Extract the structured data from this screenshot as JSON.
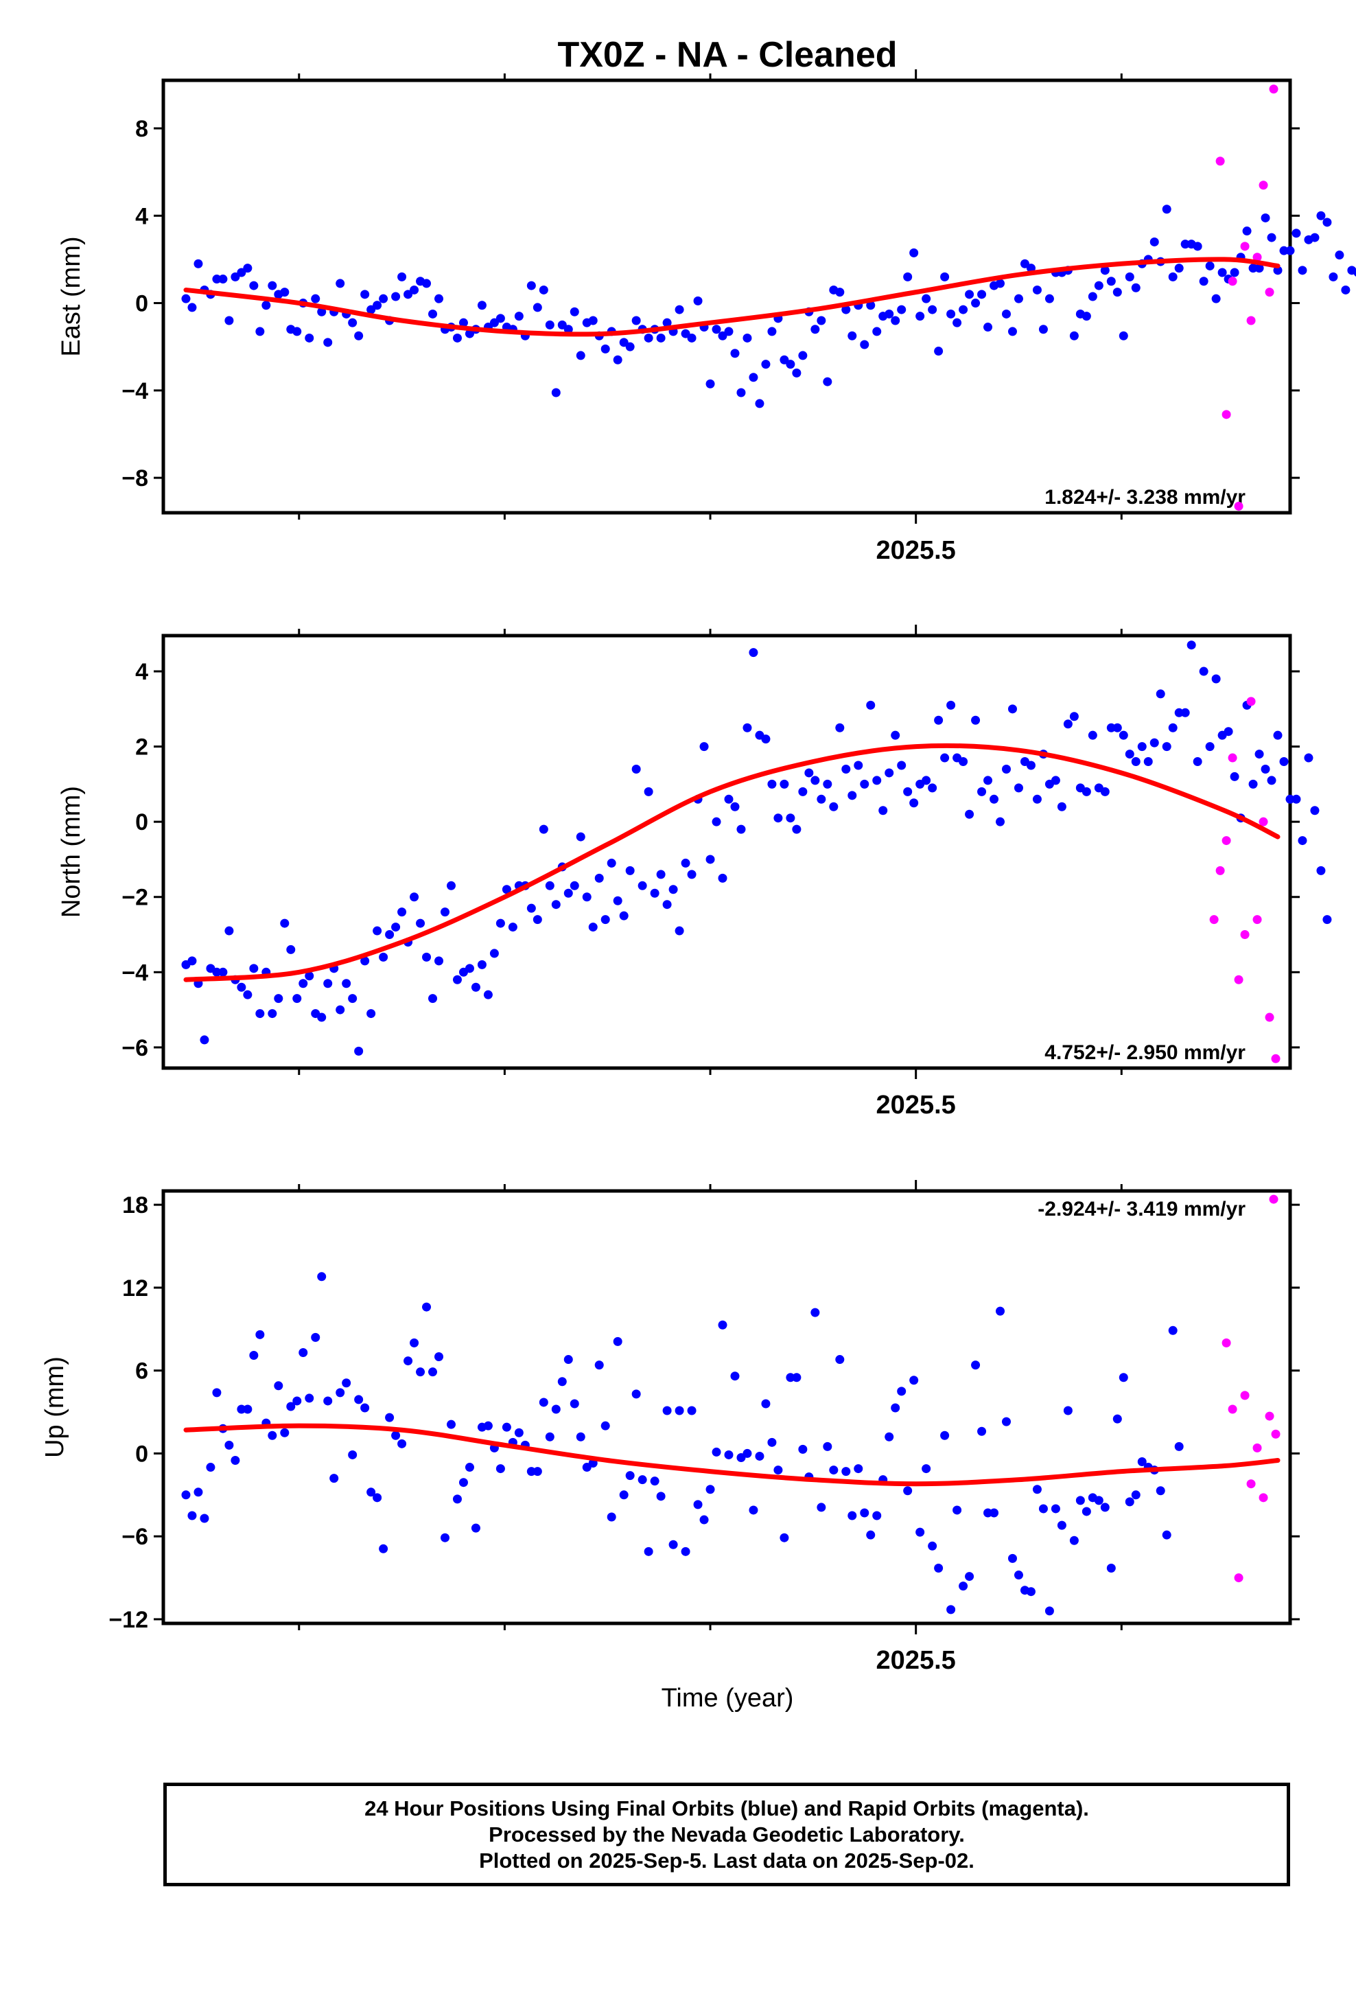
{
  "page": {
    "title": "TX0Z  - NA - Cleaned",
    "xaxis_title": "Time (year)",
    "footnote": [
      "24 Hour Positions Using Final Orbits (blue) and Rapid Orbits (magenta).",
      "Processed by the Nevada Geodetic Laboratory.",
      "Plotted on 2025-Sep-5. Last data on 2025-Sep-02."
    ]
  },
  "colors": {
    "final": "#0000ff",
    "rapid": "#ff00ff",
    "fit": "#ff0000",
    "frame": "#000000"
  },
  "chart_data": [
    {
      "type": "scatter",
      "ylabel": "East (mm)",
      "rate_label": "1.824+/- 3.238 mm/yr",
      "xlim": [
        2025.134,
        2025.682
      ],
      "ylim": [
        -9.6,
        10.2
      ],
      "x_ticks": [
        {
          "value": 2025.5,
          "label": "2025.5"
        }
      ],
      "x_minor_ticks": [
        2025.2,
        2025.3,
        2025.4,
        2025.6
      ],
      "y_ticks": [
        8,
        4,
        0,
        -4,
        -8
      ],
      "y_tick_labels": [
        "8",
        "4",
        "0",
        "−4",
        "−8"
      ],
      "final": {
        "start": 2025.145,
        "step": 0.003,
        "y": [
          0.2,
          -0.2,
          1.8,
          0.6,
          0.4,
          1.1,
          1.1,
          -0.8,
          1.2,
          1.4,
          1.6,
          0.8,
          -1.3,
          -0.1,
          0.8,
          0.4,
          0.5,
          -1.2,
          -1.3,
          0.0,
          -1.6,
          0.2,
          -0.4,
          -1.8,
          -0.4,
          0.9,
          -0.5,
          -0.9,
          -1.5,
          0.4,
          -0.3,
          -0.1,
          0.2,
          -0.8,
          0.3,
          1.2,
          0.4,
          0.6,
          1.0,
          0.9,
          -0.5,
          0.2,
          -1.2,
          -1.1,
          -1.6,
          -0.9,
          -1.4,
          -1.2,
          -0.1,
          -1.1,
          -0.9,
          -0.7,
          -1.1,
          -1.2,
          -0.6,
          -1.5,
          0.8,
          -0.2,
          0.6,
          -1.0,
          -4.1,
          -1.0,
          -1.2,
          -0.4,
          -2.4,
          -0.9,
          -0.8,
          -1.5,
          -2.1,
          -1.3,
          -2.6,
          -1.8,
          -2.0,
          -0.8,
          -1.2,
          -1.6,
          -1.2,
          -1.6,
          -0.9,
          -1.3,
          -0.3,
          -1.4,
          -1.6,
          0.1,
          -1.1,
          -3.7,
          -1.2,
          -1.5,
          -1.3,
          -2.3,
          -4.1,
          -1.6,
          -3.4,
          -4.6,
          -2.8,
          -1.3,
          -0.7,
          -2.6,
          -2.8,
          -3.2,
          -2.4,
          -0.4,
          -1.2,
          -0.8,
          -3.6,
          0.6,
          0.5,
          -0.3,
          -1.5,
          -0.1,
          -1.9,
          -0.1,
          -1.3,
          -0.6,
          -0.5,
          -0.8,
          -0.3,
          1.2,
          2.3,
          -0.6,
          0.2,
          -0.3,
          -2.2,
          1.2,
          -0.5,
          -0.9,
          -0.3,
          0.4,
          0.0,
          0.4,
          -1.1,
          0.8,
          0.9,
          -0.5,
          -1.3,
          0.2,
          1.8,
          1.6,
          0.6,
          -1.2,
          0.2,
          1.4,
          1.4,
          1.5,
          -1.5,
          -0.5,
          -0.6,
          0.3,
          0.8,
          1.5,
          1.0,
          0.5,
          -1.5,
          1.2,
          0.7,
          1.8,
          2.0,
          2.8,
          1.9,
          4.3,
          1.2,
          1.6,
          2.7,
          2.7,
          2.6,
          1.0,
          1.7,
          0.2,
          1.4,
          1.1,
          1.4,
          2.1,
          3.3,
          1.6,
          1.6,
          3.9,
          3.0,
          1.5,
          2.4,
          2.4,
          3.2,
          1.5,
          2.9,
          3.0,
          4.0,
          3.7,
          1.2,
          2.2,
          0.6,
          1.5,
          1.4
        ]
      },
      "rapid": {
        "x": [
          2025.648,
          2025.651,
          2025.654,
          2025.657,
          2025.66,
          2025.663,
          2025.666,
          2025.669
        ],
        "y": [
          6.5,
          -5.1,
          1.0,
          -9.3,
          2.6,
          -0.8,
          2.1,
          5.4
        ]
      },
      "rapid_extra": {
        "x": [
          2025.672,
          2025.674
        ],
        "y": [
          0.5,
          9.8
        ]
      },
      "fit": {
        "x": [
          2025.145,
          2025.2,
          2025.25,
          2025.3,
          2025.35,
          2025.4,
          2025.45,
          2025.5,
          2025.55,
          2025.6,
          2025.65,
          2025.676
        ],
        "y": [
          0.6,
          0.0,
          -0.8,
          -1.3,
          -1.4,
          -0.9,
          -0.3,
          0.5,
          1.3,
          1.8,
          2.0,
          1.7
        ]
      }
    },
    {
      "type": "scatter",
      "ylabel": "North (mm)",
      "rate_label": "4.752+/- 2.950 mm/yr",
      "xlim": [
        2025.134,
        2025.682
      ],
      "ylim": [
        -6.55,
        4.95
      ],
      "x_ticks": [
        {
          "value": 2025.5,
          "label": "2025.5"
        }
      ],
      "x_minor_ticks": [
        2025.2,
        2025.3,
        2025.4,
        2025.6
      ],
      "y_ticks": [
        4,
        2,
        0,
        -2,
        -4,
        -6
      ],
      "y_tick_labels": [
        "4",
        "2",
        "0",
        "−2",
        "−4",
        "−6"
      ],
      "final": {
        "start": 2025.145,
        "step": 0.003,
        "y": [
          -3.8,
          -3.7,
          -4.3,
          -5.8,
          -3.9,
          -4.0,
          -4.0,
          -2.9,
          -4.2,
          -4.4,
          -4.6,
          -3.9,
          -5.1,
          -4.0,
          -5.1,
          -4.7,
          -2.7,
          -3.4,
          -4.7,
          -4.3,
          -4.1,
          -5.1,
          -5.2,
          -4.3,
          -3.9,
          -5.0,
          -4.3,
          -4.7,
          -6.1,
          -3.7,
          -5.1,
          -2.9,
          -3.6,
          -3.0,
          -2.8,
          -2.4,
          -3.2,
          -2.0,
          -2.7,
          -3.6,
          -4.7,
          -3.7,
          -2.4,
          -1.7,
          -4.2,
          -4.0,
          -3.9,
          -4.4,
          -3.8,
          -4.6,
          -3.5,
          -2.7,
          -1.8,
          -2.8,
          -1.7,
          -1.7,
          -2.3,
          -2.6,
          -0.2,
          -1.7,
          -2.2,
          -1.2,
          -1.9,
          -1.7,
          -0.4,
          -2.0,
          -2.8,
          -1.5,
          -2.6,
          -1.1,
          -2.1,
          -2.5,
          -1.3,
          1.4,
          -1.7,
          0.8,
          -1.9,
          -1.4,
          -2.2,
          -1.8,
          -2.9,
          -1.1,
          -1.4,
          0.6,
          2.0,
          -1.0,
          0.0,
          -1.5,
          0.6,
          0.4,
          -0.2,
          2.5,
          4.5,
          2.3,
          2.2,
          1.0,
          0.1,
          1.0,
          0.1,
          -0.2,
          0.8,
          1.3,
          1.1,
          0.6,
          1.0,
          0.4,
          2.5,
          1.4,
          0.7,
          1.5,
          1.0,
          3.1,
          1.1,
          0.3,
          1.3,
          2.3,
          1.5,
          0.8,
          0.5,
          1.0,
          1.1,
          0.9,
          2.7,
          1.7,
          3.1,
          1.7,
          1.6,
          0.2,
          2.7,
          0.8,
          1.1,
          0.6,
          0.0,
          1.4,
          3.0,
          0.9,
          1.6,
          1.5,
          0.6,
          1.8,
          1.0,
          1.1,
          0.4,
          2.6,
          2.8,
          0.9,
          0.8,
          2.3,
          0.9,
          0.8,
          2.5,
          2.5,
          2.3,
          1.8,
          1.6,
          2.0,
          1.6,
          2.1,
          3.4,
          2.0,
          2.5,
          2.9,
          2.9,
          4.7,
          1.6,
          4.0,
          2.0,
          3.8,
          2.3,
          2.4,
          1.2,
          0.1,
          3.1,
          1.0,
          1.8,
          1.4,
          1.1,
          2.3,
          1.6,
          0.6,
          0.6,
          -0.5,
          1.7,
          0.3,
          -1.3,
          -2.6
        ]
      },
      "rapid": {
        "x": [
          2025.645,
          2025.648,
          2025.651,
          2025.654,
          2025.657,
          2025.66,
          2025.663,
          2025.666,
          2025.669,
          2025.672,
          2025.675
        ],
        "y": [
          -2.6,
          -1.3,
          -0.5,
          1.7,
          -4.2,
          -3.0,
          3.2,
          -2.6,
          0.0,
          -5.2,
          -6.3
        ]
      },
      "fit": {
        "x": [
          2025.145,
          2025.2,
          2025.25,
          2025.3,
          2025.35,
          2025.4,
          2025.45,
          2025.5,
          2025.55,
          2025.6,
          2025.65,
          2025.676
        ],
        "y": [
          -4.2,
          -4.0,
          -3.2,
          -2.0,
          -0.6,
          0.8,
          1.6,
          2.0,
          1.9,
          1.3,
          0.3,
          -0.4
        ]
      }
    },
    {
      "type": "scatter",
      "ylabel": "Up (mm)",
      "rate_label": "-2.924+/- 3.419 mm/yr",
      "xlim": [
        2025.134,
        2025.682
      ],
      "ylim": [
        -12.3,
        19.0
      ],
      "x_ticks": [
        {
          "value": 2025.5,
          "label": "2025.5"
        }
      ],
      "x_minor_ticks": [
        2025.2,
        2025.3,
        2025.4,
        2025.6
      ],
      "y_ticks": [
        18,
        12,
        6,
        0,
        -6,
        -12
      ],
      "y_tick_labels": [
        "18",
        "12",
        "6",
        "0",
        "−6",
        "−12"
      ],
      "final": {
        "start": 2025.145,
        "step": 0.003,
        "y": [
          -3.0,
          -4.5,
          -2.8,
          -4.7,
          -1.0,
          4.4,
          1.8,
          0.6,
          -0.5,
          3.2,
          3.2,
          7.1,
          8.6,
          2.2,
          1.3,
          4.9,
          1.5,
          3.4,
          3.8,
          7.3,
          4.0,
          8.4,
          12.8,
          3.8,
          -1.8,
          4.4,
          5.1,
          -0.1,
          3.9,
          3.3,
          -2.8,
          -3.2,
          -6.9,
          2.6,
          1.3,
          0.7,
          6.7,
          8.0,
          5.9,
          10.6,
          5.9,
          7.0,
          -6.1,
          2.1,
          -3.3,
          -2.1,
          -1.0,
          -5.4,
          1.9,
          2.0,
          0.4,
          -1.1,
          1.9,
          0.8,
          1.5,
          0.6,
          -1.3,
          -1.3,
          3.7,
          1.2,
          3.2,
          5.2,
          6.8,
          3.6,
          1.2,
          -1.0,
          -0.7,
          6.4,
          2.0,
          -4.6,
          8.1,
          -3.0,
          -1.6,
          4.3,
          -1.9,
          -7.1,
          -2.0,
          -3.1,
          3.1,
          -6.6,
          3.1,
          -7.1,
          3.1,
          -3.7,
          -4.8,
          -2.6,
          0.1,
          9.3,
          -0.1,
          5.6,
          -0.3,
          0.0,
          -4.1,
          -0.2,
          3.6,
          0.8,
          -1.2,
          -6.1,
          5.5,
          5.5,
          0.3,
          -1.7,
          10.2,
          -3.9,
          0.5,
          -1.2,
          6.8,
          -1.3,
          -4.5,
          -1.1,
          -4.3,
          -5.9,
          -4.5,
          -1.9,
          1.2,
          3.3,
          4.5,
          -2.7,
          5.3,
          -5.7,
          -1.1,
          -6.7,
          -8.3,
          1.3,
          -11.3,
          -4.1,
          -9.6,
          -8.9,
          6.4,
          1.6,
          -4.3,
          -4.3,
          10.3,
          2.3,
          -7.6,
          -8.8,
          -9.9,
          -10.0,
          -2.6,
          -4.0,
          -11.4,
          -4.0,
          -5.2,
          3.1,
          -6.3,
          -3.4,
          -4.2,
          -3.2,
          -3.4,
          -3.9,
          -8.3,
          2.5,
          5.5,
          -3.5,
          -3.0,
          -0.6,
          -1.0,
          -1.2,
          -2.7,
          -5.9,
          8.9,
          0.5
        ]
      },
      "rapid": {
        "x": [
          2025.651,
          2025.654,
          2025.657,
          2025.66,
          2025.663,
          2025.666,
          2025.669,
          2025.672,
          2025.675
        ],
        "y": [
          8.0,
          3.2,
          -9.0,
          4.2,
          -2.2,
          0.4,
          -3.2,
          2.7,
          1.4
        ]
      },
      "rapid_extra": {
        "x": [
          2025.674
        ],
        "y": [
          18.4
        ]
      },
      "fit": {
        "x": [
          2025.145,
          2025.2,
          2025.25,
          2025.3,
          2025.35,
          2025.4,
          2025.45,
          2025.5,
          2025.55,
          2025.6,
          2025.65,
          2025.676
        ],
        "y": [
          1.7,
          2.0,
          1.7,
          0.6,
          -0.5,
          -1.3,
          -1.9,
          -2.2,
          -1.9,
          -1.3,
          -0.9,
          -0.5
        ]
      }
    }
  ]
}
